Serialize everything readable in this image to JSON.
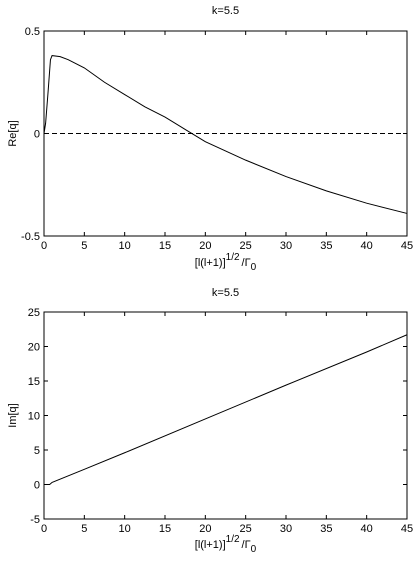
{
  "chart_data": [
    {
      "type": "line",
      "title": "k=5.5",
      "xlabel": {
        "base": "[l(l+1)]",
        "sup": "1/2",
        "mid": "/Γ",
        "sub": "0"
      },
      "ylabel": "Re[q]",
      "x": [
        0,
        0.2,
        0.5,
        0.8,
        1,
        2,
        3,
        5,
        7.5,
        10,
        12.5,
        15,
        17.5,
        20,
        25,
        30,
        35,
        40,
        45
      ],
      "series": [
        {
          "color": "#000000",
          "values": [
            0,
            0.05,
            0.2,
            0.36,
            0.38,
            0.375,
            0.36,
            0.32,
            0.25,
            0.19,
            0.13,
            0.08,
            0.02,
            -0.04,
            -0.13,
            -0.21,
            -0.28,
            -0.34,
            -0.39
          ]
        }
      ],
      "reference_line": {
        "value": 0,
        "style": "dashed"
      },
      "xlim": [
        0,
        45
      ],
      "xticks": [
        0,
        5,
        10,
        15,
        20,
        25,
        30,
        35,
        40,
        45
      ],
      "ylim": [
        -0.5,
        0.5
      ],
      "yticks": [
        -0.5,
        0,
        0.5
      ]
    },
    {
      "type": "line",
      "title": "k=5.5",
      "xlabel": {
        "base": "[l(l+1)]",
        "sup": "1/2",
        "mid": "/Γ",
        "sub": "0"
      },
      "ylabel": "Im[q]",
      "x": [
        0,
        0.7,
        1,
        5,
        10,
        20,
        30,
        40,
        45
      ],
      "series": [
        {
          "color": "#000000",
          "values": [
            0,
            0,
            0.3,
            2.2,
            4.6,
            9.5,
            14.4,
            19.2,
            21.7
          ]
        }
      ],
      "xlim": [
        0,
        45
      ],
      "xticks": [
        0,
        5,
        10,
        15,
        20,
        25,
        30,
        35,
        40,
        45
      ],
      "ylim": [
        -5,
        25
      ],
      "yticks": [
        -5,
        0,
        5,
        10,
        15,
        20,
        25
      ]
    }
  ]
}
